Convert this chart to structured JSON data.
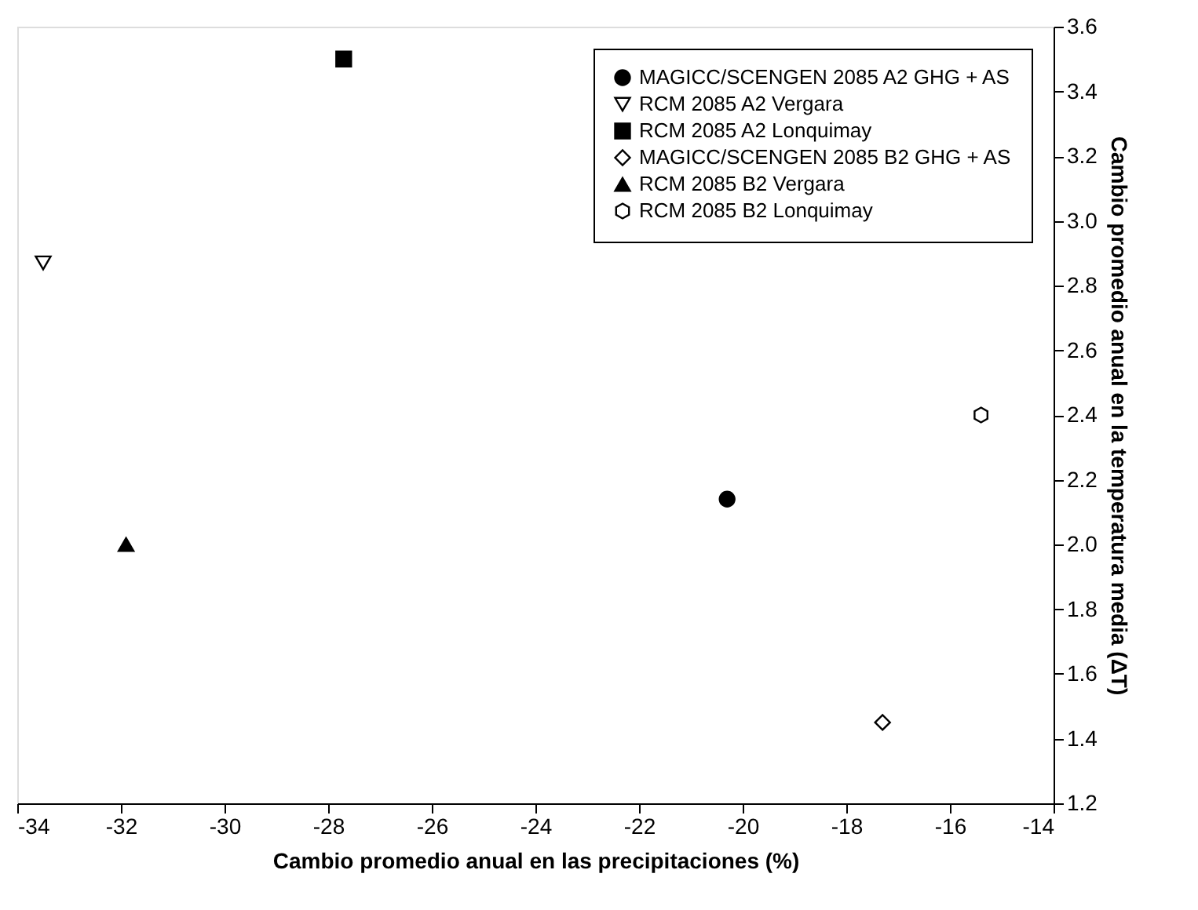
{
  "chart_data": {
    "type": "scatter",
    "xlabel": "Cambio promedio anual en las precipitaciones (%)",
    "ylabel": "Cambio promedio anual en la temperatura media (ΔT)",
    "xlim": [
      -34,
      -14
    ],
    "xticks": [
      -34,
      -32,
      -30,
      -28,
      -26,
      -24,
      -22,
      -20,
      -18,
      -16,
      -14
    ],
    "ylim": [
      1.2,
      3.6
    ],
    "yticks": [
      1.2,
      1.4,
      1.6,
      1.8,
      {
        "value": 2,
        "label": "2.0"
      },
      2.2,
      2.4,
      2.6,
      2.8,
      {
        "value": 3,
        "label": "3.0"
      },
      3.2,
      3.4,
      3.6
    ],
    "grid": false,
    "legend": "top right",
    "series": [
      {
        "name": "MAGICC/SCENGEN 2085 A2 GHG + AS",
        "color": "#000000",
        "marker": "circle",
        "x": [
          -20.3
        ],
        "values": [
          2.14
        ]
      },
      {
        "name": "RCM 2085 A2 Vergara",
        "color": "#000000",
        "marker": "triangle-down-open",
        "x": [
          -33.5
        ],
        "values": [
          2.87
        ]
      },
      {
        "name": "RCM 2085 A2 Lonquimay",
        "color": "#000000",
        "marker": "square",
        "x": [
          -27.7
        ],
        "values": [
          3.5
        ]
      },
      {
        "name": "MAGICC/SCENGEN 2085 B2 GHG + AS",
        "color": "#000000",
        "marker": "diamond-open",
        "x": [
          -17.3
        ],
        "values": [
          1.45
        ]
      },
      {
        "name": "RCM 2085 B2 Vergara",
        "color": "#000000",
        "marker": "triangle-up",
        "x": [
          -31.9
        ],
        "values": [
          2.0
        ]
      },
      {
        "name": "RCM 2085 B2 Lonquimay",
        "color": "#000000",
        "x": [
          -15.4
        ],
        "values": [
          2.4
        ]
      }
    ]
  }
}
